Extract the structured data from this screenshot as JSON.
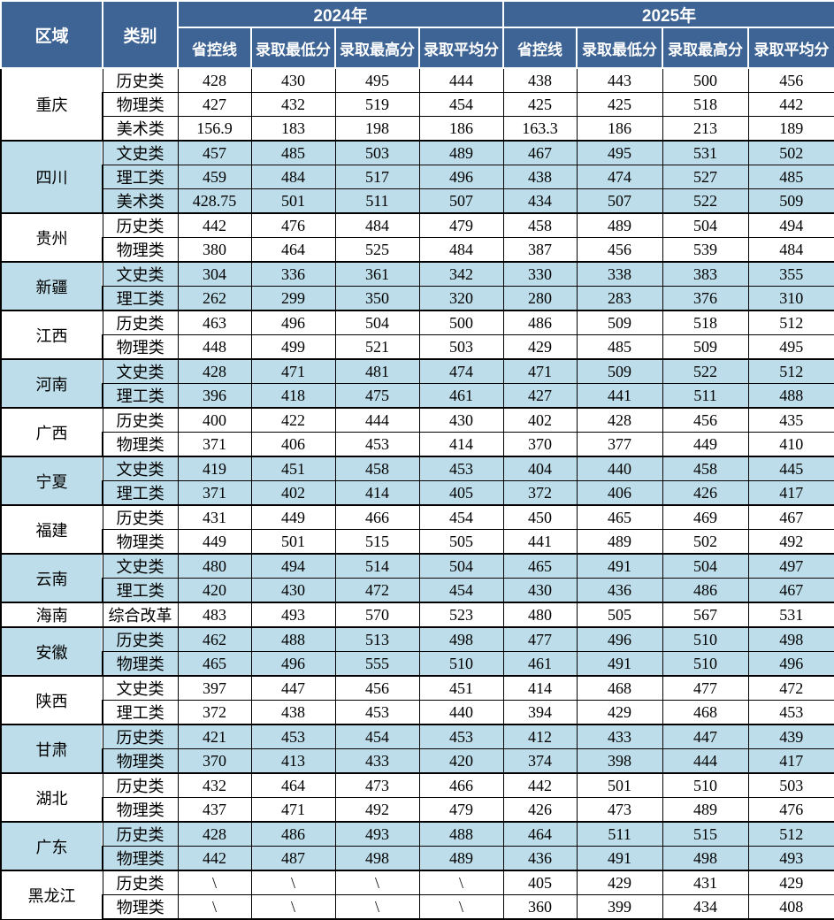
{
  "header": {
    "region_label": "区域",
    "category_label": "类别",
    "year_groups": [
      "2024年",
      "2025年"
    ],
    "sub_columns": [
      "省控线",
      "录取最低分",
      "录取最高分",
      "录取平均分"
    ]
  },
  "groups": [
    {
      "region": "重庆",
      "shaded": false,
      "rows": [
        {
          "category": "历史类",
          "y2024": [
            "428",
            "430",
            "495",
            "444"
          ],
          "y2025": [
            "438",
            "443",
            "500",
            "456"
          ]
        },
        {
          "category": "物理类",
          "y2024": [
            "427",
            "432",
            "519",
            "454"
          ],
          "y2025": [
            "425",
            "425",
            "518",
            "442"
          ]
        },
        {
          "category": "美术类",
          "y2024": [
            "156.9",
            "183",
            "198",
            "186"
          ],
          "y2025": [
            "163.3",
            "186",
            "213",
            "189"
          ]
        }
      ]
    },
    {
      "region": "四川",
      "shaded": true,
      "rows": [
        {
          "category": "文史类",
          "y2024": [
            "457",
            "485",
            "503",
            "489"
          ],
          "y2025": [
            "467",
            "495",
            "531",
            "502"
          ]
        },
        {
          "category": "理工类",
          "y2024": [
            "459",
            "484",
            "517",
            "496"
          ],
          "y2025": [
            "438",
            "474",
            "527",
            "485"
          ]
        },
        {
          "category": "美术类",
          "y2024": [
            "428.75",
            "501",
            "511",
            "507"
          ],
          "y2025": [
            "434",
            "507",
            "522",
            "509"
          ]
        }
      ]
    },
    {
      "region": "贵州",
      "shaded": false,
      "rows": [
        {
          "category": "历史类",
          "y2024": [
            "442",
            "476",
            "484",
            "479"
          ],
          "y2025": [
            "458",
            "489",
            "504",
            "494"
          ]
        },
        {
          "category": "物理类",
          "y2024": [
            "380",
            "464",
            "525",
            "484"
          ],
          "y2025": [
            "387",
            "456",
            "539",
            "484"
          ]
        }
      ]
    },
    {
      "region": "新疆",
      "shaded": true,
      "rows": [
        {
          "category": "文史类",
          "y2024": [
            "304",
            "336",
            "361",
            "342"
          ],
          "y2025": [
            "330",
            "338",
            "383",
            "355"
          ]
        },
        {
          "category": "理工类",
          "y2024": [
            "262",
            "299",
            "350",
            "320"
          ],
          "y2025": [
            "280",
            "283",
            "376",
            "310"
          ]
        }
      ]
    },
    {
      "region": "江西",
      "shaded": false,
      "rows": [
        {
          "category": "历史类",
          "y2024": [
            "463",
            "496",
            "504",
            "500"
          ],
          "y2025": [
            "486",
            "509",
            "518",
            "512"
          ]
        },
        {
          "category": "物理类",
          "y2024": [
            "448",
            "499",
            "521",
            "503"
          ],
          "y2025": [
            "429",
            "485",
            "509",
            "495"
          ]
        }
      ]
    },
    {
      "region": "河南",
      "shaded": true,
      "rows": [
        {
          "category": "文史类",
          "y2024": [
            "428",
            "471",
            "481",
            "474"
          ],
          "y2025": [
            "471",
            "509",
            "522",
            "512"
          ]
        },
        {
          "category": "理工类",
          "y2024": [
            "396",
            "418",
            "475",
            "461"
          ],
          "y2025": [
            "427",
            "441",
            "511",
            "488"
          ]
        }
      ]
    },
    {
      "region": "广西",
      "shaded": false,
      "rows": [
        {
          "category": "历史类",
          "y2024": [
            "400",
            "422",
            "444",
            "430"
          ],
          "y2025": [
            "402",
            "428",
            "456",
            "435"
          ]
        },
        {
          "category": "物理类",
          "y2024": [
            "371",
            "406",
            "453",
            "414"
          ],
          "y2025": [
            "370",
            "377",
            "449",
            "410"
          ]
        }
      ]
    },
    {
      "region": "宁夏",
      "shaded": true,
      "rows": [
        {
          "category": "文史类",
          "y2024": [
            "419",
            "451",
            "458",
            "453"
          ],
          "y2025": [
            "404",
            "440",
            "458",
            "445"
          ]
        },
        {
          "category": "理工类",
          "y2024": [
            "371",
            "402",
            "414",
            "405"
          ],
          "y2025": [
            "372",
            "406",
            "426",
            "417"
          ]
        }
      ]
    },
    {
      "region": "福建",
      "shaded": false,
      "rows": [
        {
          "category": "历史类",
          "y2024": [
            "431",
            "449",
            "466",
            "454"
          ],
          "y2025": [
            "450",
            "465",
            "469",
            "467"
          ]
        },
        {
          "category": "物理类",
          "y2024": [
            "449",
            "501",
            "515",
            "505"
          ],
          "y2025": [
            "441",
            "489",
            "502",
            "492"
          ]
        }
      ]
    },
    {
      "region": "云南",
      "shaded": true,
      "rows": [
        {
          "category": "文史类",
          "y2024": [
            "480",
            "494",
            "514",
            "504"
          ],
          "y2025": [
            "465",
            "491",
            "504",
            "497"
          ]
        },
        {
          "category": "理工类",
          "y2024": [
            "420",
            "430",
            "472",
            "454"
          ],
          "y2025": [
            "430",
            "436",
            "486",
            "467"
          ]
        }
      ]
    },
    {
      "region": "海南",
      "shaded": false,
      "rows": [
        {
          "category": "综合改革",
          "y2024": [
            "483",
            "493",
            "570",
            "523"
          ],
          "y2025": [
            "480",
            "505",
            "567",
            "531"
          ]
        }
      ]
    },
    {
      "region": "安徽",
      "shaded": true,
      "rows": [
        {
          "category": "历史类",
          "y2024": [
            "462",
            "488",
            "513",
            "498"
          ],
          "y2025": [
            "477",
            "496",
            "510",
            "498"
          ]
        },
        {
          "category": "物理类",
          "y2024": [
            "465",
            "496",
            "555",
            "510"
          ],
          "y2025": [
            "461",
            "491",
            "510",
            "496"
          ]
        }
      ]
    },
    {
      "region": "陕西",
      "shaded": false,
      "rows": [
        {
          "category": "文史类",
          "y2024": [
            "397",
            "447",
            "456",
            "451"
          ],
          "y2025": [
            "414",
            "468",
            "477",
            "472"
          ]
        },
        {
          "category": "理工类",
          "y2024": [
            "372",
            "438",
            "453",
            "440"
          ],
          "y2025": [
            "394",
            "429",
            "468",
            "453"
          ]
        }
      ]
    },
    {
      "region": "甘肃",
      "shaded": true,
      "rows": [
        {
          "category": "历史类",
          "y2024": [
            "421",
            "453",
            "454",
            "453"
          ],
          "y2025": [
            "412",
            "433",
            "447",
            "439"
          ]
        },
        {
          "category": "物理类",
          "y2024": [
            "370",
            "413",
            "433",
            "420"
          ],
          "y2025": [
            "374",
            "398",
            "444",
            "417"
          ]
        }
      ]
    },
    {
      "region": "湖北",
      "shaded": false,
      "rows": [
        {
          "category": "历史类",
          "y2024": [
            "432",
            "464",
            "473",
            "466"
          ],
          "y2025": [
            "442",
            "501",
            "510",
            "503"
          ]
        },
        {
          "category": "物理类",
          "y2024": [
            "437",
            "471",
            "492",
            "479"
          ],
          "y2025": [
            "426",
            "473",
            "489",
            "476"
          ]
        }
      ]
    },
    {
      "region": "广东",
      "shaded": true,
      "rows": [
        {
          "category": "历史类",
          "y2024": [
            "428",
            "486",
            "493",
            "488"
          ],
          "y2025": [
            "464",
            "511",
            "515",
            "512"
          ]
        },
        {
          "category": "物理类",
          "y2024": [
            "442",
            "487",
            "498",
            "489"
          ],
          "y2025": [
            "436",
            "491",
            "498",
            "493"
          ]
        }
      ]
    },
    {
      "region": "黑龙江",
      "shaded": false,
      "rows": [
        {
          "category": "历史类",
          "y2024": [
            "\\",
            "\\",
            "\\",
            "\\"
          ],
          "y2025": [
            "405",
            "429",
            "431",
            "429"
          ]
        },
        {
          "category": "物理类",
          "y2024": [
            "\\",
            "\\",
            "\\",
            "\\"
          ],
          "y2025": [
            "360",
            "399",
            "434",
            "408"
          ]
        }
      ]
    }
  ],
  "colors": {
    "header_bg": "#3D6494",
    "shaded_row_bg": "#BCDDE9",
    "border": "#000000"
  }
}
